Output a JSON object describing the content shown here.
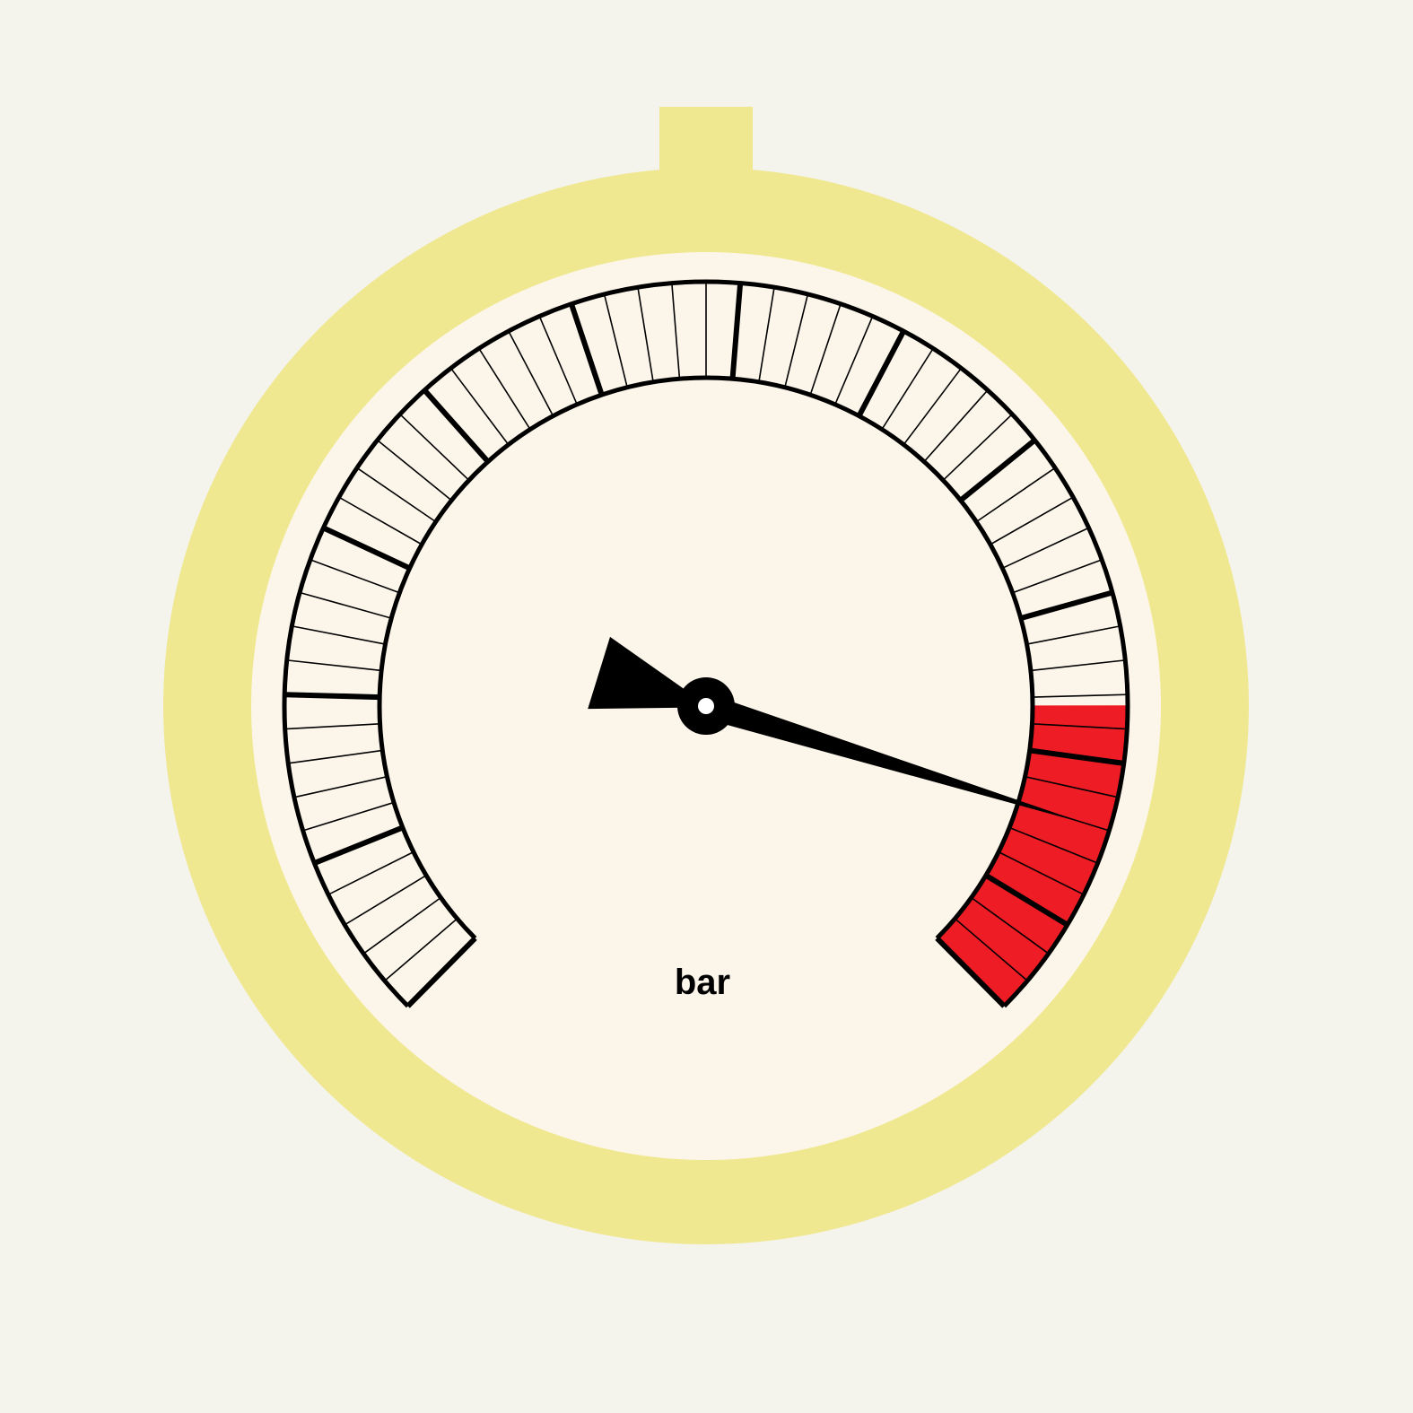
{
  "gauge": {
    "unit": "bar",
    "reading_fraction": 0.897,
    "minor_ticks_total": 59,
    "major_every": 5,
    "red_zone_start_fraction": 0.833,
    "colors": {
      "background": "#f4f3ec",
      "bezel": "#f0e890",
      "face": "#fcf6ea",
      "red_zone": "#ee1c24",
      "ink": "#000000"
    }
  }
}
